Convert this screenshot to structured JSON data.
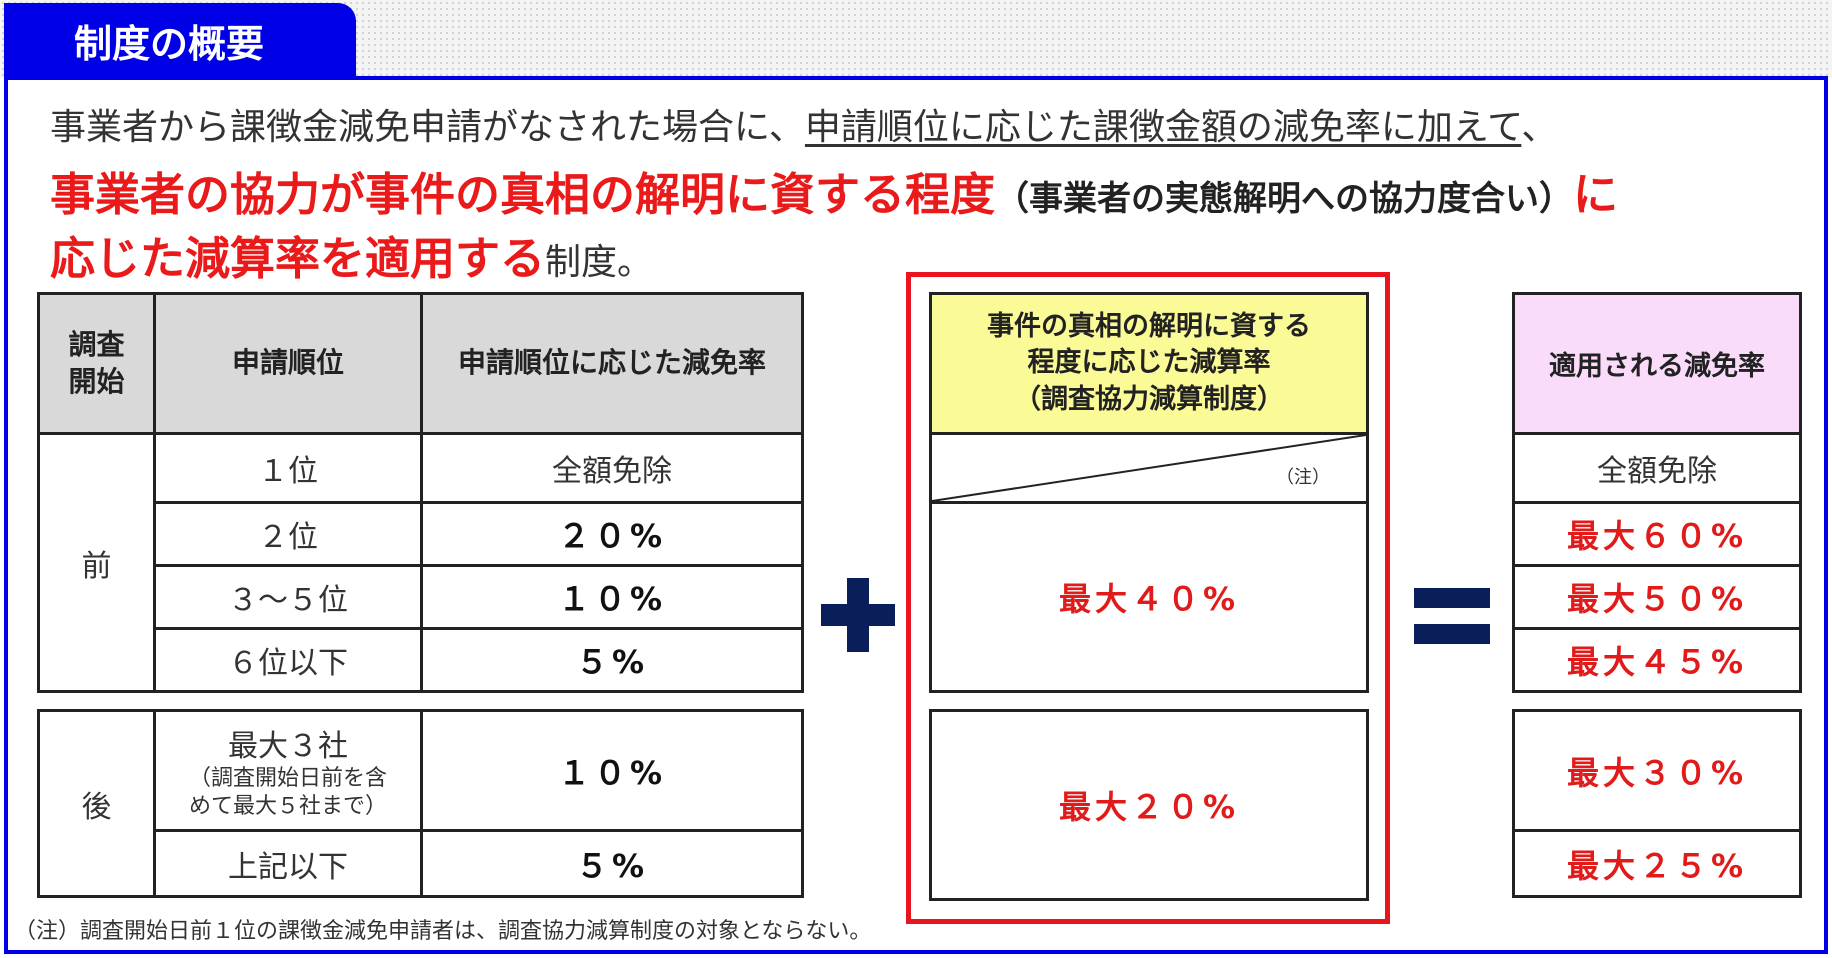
{
  "tab": {
    "title": "制度の概要"
  },
  "intro": {
    "line1_a": "事業者から課徴金減免申請がなされた場合に、",
    "line1_b": "申請順位に応じた課徴金額の減免率に加えて",
    "line1_c": "、",
    "line2_red": "事業者の協力が事件の真相の解明に資する程度",
    "line2_paren": "（事業者の実態解明への協力度合い）",
    "line2_red2": "に",
    "line3_red": "応じた減算率を適用する",
    "line3_plain": "制度。"
  },
  "left_table": {
    "headers": {
      "h1": "調査\n開始",
      "h2": "申請順位",
      "h3": "申請順位に応じた減免率"
    },
    "before_label": "前",
    "before_rows": [
      {
        "rank": "１位",
        "rate": "全額免除"
      },
      {
        "rank": "２位",
        "rate": "２０%"
      },
      {
        "rank": "３～５位",
        "rate": "１０%"
      },
      {
        "rank": "６位以下",
        "rate": "５%"
      }
    ],
    "after_label": "後",
    "after_rows": [
      {
        "rank": "最大３社",
        "rank_note": "（調査開始日前を含\nめて最大５社まで）",
        "rate": "１０%"
      },
      {
        "rank": "上記以下",
        "rate": "５%"
      }
    ]
  },
  "plus_symbol": "+",
  "equals_symbol": "=",
  "middle_table": {
    "header": "事件の真相の解明に資する\n程度に応じた減算率\n（調査協力減算制度）",
    "note": "（注）",
    "before_value": "最大４０%",
    "after_value": "最大２０%"
  },
  "right_table": {
    "header": "適用される減免率",
    "before_values": [
      "全額免除",
      "最大６０%",
      "最大５０%",
      "最大４５%"
    ],
    "after_values": [
      "最大３０%",
      "最大２５%"
    ]
  },
  "footnote": "（注）調査開始日前１位の課徴金減免申請者は、調査協力減算制度の対象とならない。",
  "colors": {
    "brand_blue": "#0000e6",
    "accent_red": "#ea1a1a",
    "header_gray": "#d9d9d9",
    "header_yellow": "#fafa96",
    "header_pink": "#fadcfa",
    "symbol_navy": "#0a1e5a"
  }
}
